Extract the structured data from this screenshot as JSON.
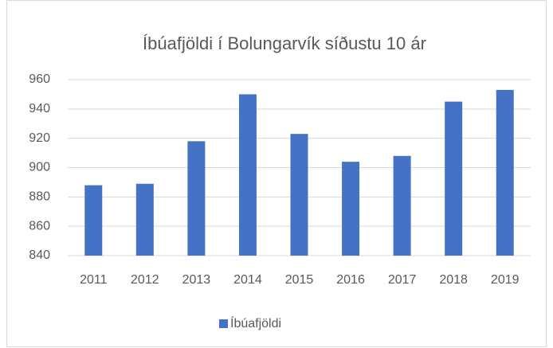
{
  "chart_data": {
    "type": "bar",
    "title": "Íbúafjöldi í Bolungarvík síðustu 10 ár",
    "categories": [
      "2011",
      "2012",
      "2013",
      "2014",
      "2015",
      "2016",
      "2017",
      "2018",
      "2019"
    ],
    "series": [
      {
        "name": "Íbúafjöldi",
        "color": "#4472c4",
        "values": [
          888,
          889,
          918,
          950,
          923,
          904,
          908,
          945,
          953
        ]
      }
    ],
    "ylim": [
      840,
      960
    ],
    "yticks": [
      840,
      860,
      880,
      900,
      920,
      940,
      960
    ],
    "grid": true,
    "legend": "bottom"
  }
}
